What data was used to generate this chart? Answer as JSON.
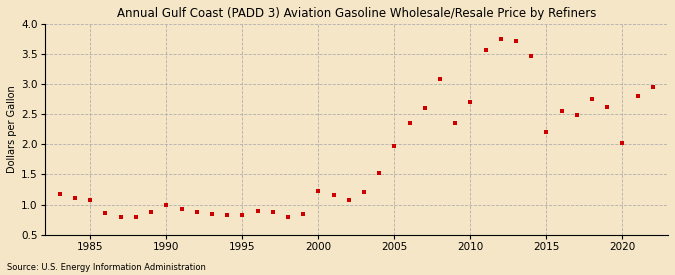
{
  "title": "Annual Gulf Coast (PADD 3) Aviation Gasoline Wholesale/Resale Price by Refiners",
  "ylabel": "Dollars per Gallon",
  "source": "Source: U.S. Energy Information Administration",
  "background_color": "#f5e6c8",
  "plot_bg_color": "#f5e6c8",
  "marker_color": "#cc0000",
  "xlim": [
    1982,
    2023
  ],
  "ylim": [
    0.5,
    4.0
  ],
  "yticks": [
    0.5,
    1.0,
    1.5,
    2.0,
    2.5,
    3.0,
    3.5,
    4.0
  ],
  "xticks": [
    1985,
    1990,
    1995,
    2000,
    2005,
    2010,
    2015,
    2020
  ],
  "years": [
    1983,
    1984,
    1985,
    1986,
    1987,
    1988,
    1989,
    1990,
    1991,
    1992,
    1993,
    1994,
    1995,
    1996,
    1997,
    1998,
    1999,
    2000,
    2001,
    2002,
    2003,
    2004,
    2005,
    2006,
    2007,
    2008,
    2009,
    2010,
    2011,
    2012,
    2013,
    2014,
    2015,
    2016,
    2017,
    2018,
    2019,
    2020,
    2021,
    2022
  ],
  "values": [
    1.17,
    1.1,
    1.07,
    0.86,
    0.8,
    0.8,
    0.87,
    1.0,
    0.93,
    0.88,
    0.85,
    0.82,
    0.83,
    0.89,
    0.88,
    0.8,
    0.84,
    1.23,
    1.15,
    1.07,
    1.21,
    1.53,
    1.97,
    2.35,
    2.61,
    3.09,
    2.35,
    2.7,
    3.56,
    3.75,
    3.72,
    3.47,
    2.2,
    2.55,
    2.49,
    2.75,
    2.62,
    2.02,
    2.8,
    2.95
  ]
}
